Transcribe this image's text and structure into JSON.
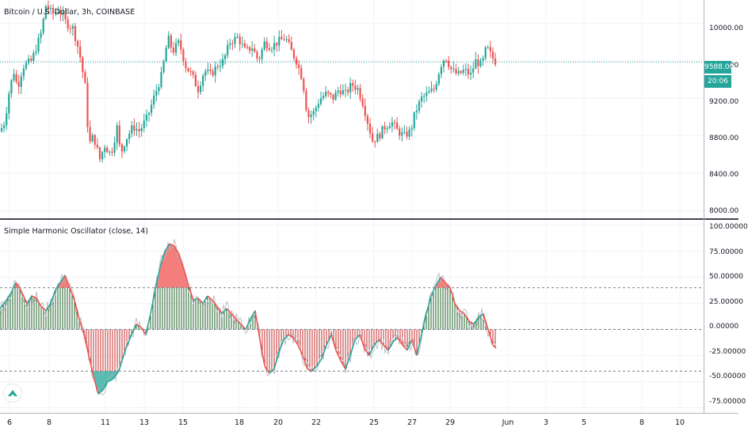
{
  "main_chart": {
    "title": "Bitcoin / U.S. Dollar, 3h, COINBASE",
    "y_ticks": [
      "10000.00",
      "9600.00",
      "9200.00",
      "8800.00",
      "8400.00",
      "8000.00"
    ],
    "current_price": "9588.00",
    "countdown": "20:06",
    "colors": {
      "up": "#26a69a",
      "down": "#ef5350",
      "price_line": "#26a69a"
    }
  },
  "oscillator": {
    "title": "Simple Harmonic Oscillator (close, 14)",
    "y_ticks": [
      "100.00000",
      "75.00000",
      "50.00000",
      "25.00000",
      "0.00000",
      "-25.00000",
      "-50.00000",
      "-75.00000"
    ],
    "colors": {
      "positive": "#26a69a",
      "negative": "#ef5350",
      "histogram_up": "#1b5e20",
      "histogram_down": "#c62828"
    }
  },
  "time_axis": {
    "ticks": [
      "6",
      "8",
      "11",
      "13",
      "15",
      "18",
      "20",
      "22",
      "25",
      "27",
      "29",
      "Jun",
      "3",
      "5",
      "8",
      "10"
    ]
  },
  "chart_data": [
    {
      "type": "candlestick",
      "title": "Bitcoin / U.S. Dollar, 3h, COINBASE",
      "ylim": [
        7920,
        10250
      ],
      "y_ticks": [
        8000,
        8400,
        8800,
        9200,
        9600,
        10000
      ],
      "last_price": 9588,
      "close_path": [
        [
          0,
          8850
        ],
        [
          6,
          8950
        ],
        [
          12,
          9300
        ],
        [
          18,
          9500
        ],
        [
          22,
          9300
        ],
        [
          26,
          9450
        ],
        [
          30,
          9550
        ],
        [
          40,
          9600
        ],
        [
          52,
          9900
        ],
        [
          58,
          10200
        ],
        [
          66,
          10100
        ],
        [
          74,
          10150
        ],
        [
          84,
          10000
        ],
        [
          92,
          9950
        ],
        [
          100,
          9700
        ],
        [
          108,
          9300
        ],
        [
          112,
          8700
        ],
        [
          118,
          8800
        ],
        [
          126,
          8550
        ],
        [
          132,
          8700
        ],
        [
          140,
          8600
        ],
        [
          148,
          8900
        ],
        [
          152,
          8600
        ],
        [
          158,
          8750
        ],
        [
          168,
          8900
        ],
        [
          176,
          8850
        ],
        [
          186,
          9000
        ],
        [
          196,
          9250
        ],
        [
          204,
          9450
        ],
        [
          212,
          9850
        ],
        [
          218,
          9700
        ],
        [
          226,
          9800
        ],
        [
          234,
          9550
        ],
        [
          242,
          9450
        ],
        [
          250,
          9300
        ],
        [
          258,
          9500
        ],
        [
          266,
          9450
        ],
        [
          274,
          9550
        ],
        [
          282,
          9600
        ],
        [
          290,
          9800
        ],
        [
          300,
          9850
        ],
        [
          310,
          9700
        ],
        [
          318,
          9750
        ],
        [
          326,
          9600
        ],
        [
          334,
          9800
        ],
        [
          342,
          9750
        ],
        [
          350,
          9800
        ],
        [
          360,
          9850
        ],
        [
          368,
          9700
        ],
        [
          374,
          9600
        ],
        [
          382,
          9400
        ],
        [
          388,
          9000
        ],
        [
          396,
          9050
        ],
        [
          404,
          9200
        ],
        [
          412,
          9250
        ],
        [
          420,
          9200
        ],
        [
          428,
          9300
        ],
        [
          436,
          9250
        ],
        [
          444,
          9350
        ],
        [
          452,
          9300
        ],
        [
          458,
          9150
        ],
        [
          464,
          8950
        ],
        [
          470,
          8750
        ],
        [
          478,
          8800
        ],
        [
          486,
          8900
        ],
        [
          494,
          8950
        ],
        [
          502,
          8850
        ],
        [
          510,
          8800
        ],
        [
          518,
          8850
        ],
        [
          524,
          9050
        ],
        [
          532,
          9200
        ],
        [
          540,
          9250
        ],
        [
          548,
          9300
        ],
        [
          556,
          9550
        ],
        [
          562,
          9650
        ],
        [
          570,
          9500
        ],
        [
          578,
          9450
        ],
        [
          586,
          9500
        ],
        [
          594,
          9450
        ],
        [
          600,
          9600
        ],
        [
          608,
          9550
        ],
        [
          614,
          9750
        ],
        [
          620,
          9650
        ],
        [
          626,
          9588
        ]
      ]
    },
    {
      "type": "area",
      "title": "Simple Harmonic Oscillator (close, 14)",
      "ylim": [
        -80,
        105
      ],
      "reference_lines": [
        40,
        0,
        -40
      ],
      "y_ticks": [
        100,
        75,
        50,
        25,
        0,
        -25,
        -50,
        -75
      ],
      "x": [
        0,
        8,
        14,
        20,
        26,
        34,
        40,
        46,
        52,
        58,
        64,
        70,
        76,
        82,
        88,
        94,
        100,
        106,
        112,
        118,
        124,
        130,
        136,
        142,
        150,
        158,
        166,
        172,
        178,
        184,
        190,
        196,
        202,
        208,
        214,
        220,
        226,
        232,
        238,
        244,
        250,
        256,
        262,
        268,
        274,
        280,
        286,
        292,
        298,
        304,
        310,
        316,
        322,
        328,
        334,
        340,
        346,
        352,
        358,
        364,
        370,
        376,
        382,
        388,
        394,
        400,
        406,
        412,
        418,
        424,
        430,
        436,
        442,
        448,
        454,
        460,
        466,
        472,
        478,
        484,
        490,
        496,
        502,
        508,
        514,
        520,
        526,
        532,
        538,
        544,
        550,
        556,
        562,
        568,
        574,
        580,
        586,
        592,
        598,
        604,
        610,
        616,
        622,
        626
      ],
      "values": [
        20,
        28,
        35,
        45,
        38,
        25,
        32,
        30,
        22,
        18,
        25,
        38,
        45,
        52,
        40,
        28,
        10,
        -5,
        -25,
        -45,
        -62,
        -58,
        -50,
        -48,
        -40,
        -20,
        -5,
        5,
        2,
        -5,
        15,
        38,
        60,
        75,
        82,
        80,
        72,
        58,
        42,
        28,
        30,
        25,
        32,
        28,
        22,
        15,
        20,
        15,
        10,
        5,
        0,
        10,
        18,
        -10,
        -35,
        -42,
        -38,
        -22,
        -10,
        -5,
        -8,
        -15,
        -25,
        -38,
        -40,
        -35,
        -28,
        -15,
        -5,
        -20,
        -30,
        -38,
        -25,
        -10,
        -5,
        -18,
        -25,
        -15,
        -10,
        -15,
        -20,
        -12,
        -8,
        -15,
        -20,
        -10,
        -25,
        -5,
        15,
        32,
        42,
        50,
        45,
        40,
        25,
        18,
        15,
        8,
        5,
        12,
        15,
        0,
        -15,
        -18
      ]
    }
  ]
}
